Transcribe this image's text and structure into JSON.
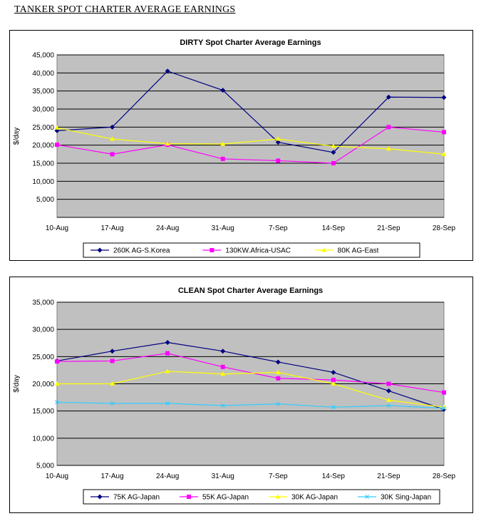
{
  "page_title": "TANKER SPOT CHARTER AVERAGE EARNINGS",
  "chart_data": [
    {
      "type": "line",
      "title": "DIRTY Spot Charter Average  Earnings",
      "ylabel": "$/day",
      "xlabel": "",
      "ylim": [
        0,
        45000
      ],
      "yticks": [
        5000,
        10000,
        15000,
        20000,
        25000,
        30000,
        35000,
        40000,
        45000
      ],
      "ytick_labels": [
        "5,000",
        "10,000",
        "15,000",
        "20,000",
        "25,000",
        "30,000",
        "35,000",
        "40,000",
        "45,000"
      ],
      "categories": [
        "10-Aug",
        "17-Aug",
        "24-Aug",
        "31-Aug",
        "7-Sep",
        "14-Sep",
        "21-Sep",
        "28-Sep"
      ],
      "grid": true,
      "plot_background": "#c0c0c0",
      "legend_position": "bottom",
      "series": [
        {
          "name": "260K AG-S.Korea",
          "color": "#000080",
          "marker": "diamond",
          "values": [
            24000,
            25000,
            40500,
            35200,
            20800,
            18000,
            33300,
            33200
          ]
        },
        {
          "name": "130KW.Africa-USAC",
          "color": "#ff00ff",
          "marker": "square",
          "values": [
            20100,
            17500,
            20100,
            16200,
            15700,
            15000,
            25000,
            23600
          ]
        },
        {
          "name": "80K AG-East",
          "color": "#ffff00",
          "marker": "triangle",
          "values": [
            24800,
            21700,
            20400,
            20300,
            21700,
            19700,
            19000,
            17500
          ]
        }
      ]
    },
    {
      "type": "line",
      "title": "CLEAN Spot Charter Average Earnings",
      "ylabel": "$/day",
      "xlabel": "",
      "ylim": [
        5000,
        35000
      ],
      "yticks": [
        5000,
        10000,
        15000,
        20000,
        25000,
        30000,
        35000
      ],
      "ytick_labels": [
        "5,000",
        "10,000",
        "15,000",
        "20,000",
        "25,000",
        "30,000",
        "35,000"
      ],
      "categories": [
        "10-Aug",
        "17-Aug",
        "24-Aug",
        "31-Aug",
        "7-Sep",
        "14-Sep",
        "21-Sep",
        "28-Sep"
      ],
      "grid": true,
      "plot_background": "#c0c0c0",
      "legend_position": "bottom",
      "series": [
        {
          "name": "75K AG-Japan",
          "color": "#000080",
          "marker": "diamond",
          "values": [
            24200,
            26000,
            27600,
            26000,
            24000,
            22100,
            18700,
            15300
          ]
        },
        {
          "name": "55K AG-Japan",
          "color": "#ff00ff",
          "marker": "square",
          "values": [
            24100,
            24200,
            25600,
            23100,
            21000,
            20700,
            20000,
            18400
          ]
        },
        {
          "name": "30K AG-Japan",
          "color": "#ffff00",
          "marker": "triangle",
          "values": [
            20000,
            20000,
            22300,
            21800,
            22100,
            20000,
            17000,
            15700
          ]
        },
        {
          "name": "30K Sing-Japan",
          "color": "#33ccff",
          "marker": "x",
          "values": [
            16600,
            16400,
            16400,
            16000,
            16300,
            15700,
            16000,
            15500
          ]
        }
      ]
    }
  ]
}
